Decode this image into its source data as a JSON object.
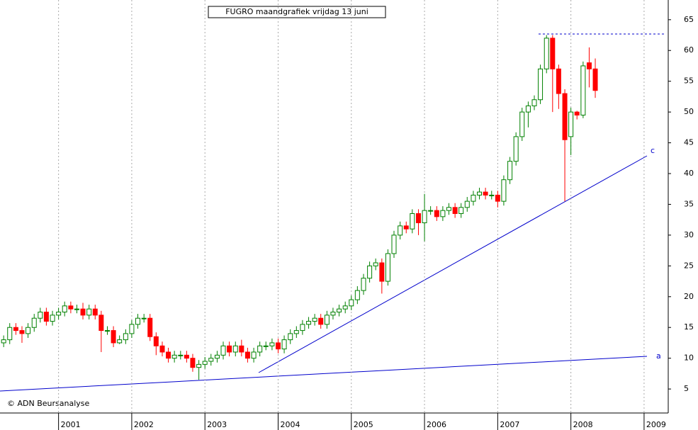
{
  "chart_data": {
    "type": "candlestick",
    "title": "FUGRO maandgrafiek vrijdag 13 juni",
    "watermark": "© ADN Beursanalyse",
    "annotations": [
      "a",
      "c"
    ],
    "up_color": "#008000",
    "down_color": "#ff0000",
    "xlim": [
      2000.2,
      2009.33
    ],
    "xticks": [
      2001,
      2002,
      2003,
      2004,
      2005,
      2006,
      2007,
      2008,
      2009
    ],
    "ylim": [
      1.1,
      68.2
    ],
    "yticks": [
      5,
      10,
      15,
      20,
      25,
      30,
      35,
      40,
      45,
      50,
      55,
      60,
      65
    ],
    "grid": true,
    "x": [
      2000.25,
      2000.333,
      2000.417,
      2000.5,
      2000.583,
      2000.667,
      2000.75,
      2000.833,
      2000.917,
      2001,
      2001.083,
      2001.167,
      2001.25,
      2001.333,
      2001.417,
      2001.5,
      2001.583,
      2001.667,
      2001.75,
      2001.833,
      2001.917,
      2002,
      2002.083,
      2002.167,
      2002.25,
      2002.333,
      2002.417,
      2002.5,
      2002.583,
      2002.667,
      2002.75,
      2002.833,
      2002.917,
      2003,
      2003.083,
      2003.167,
      2003.25,
      2003.333,
      2003.417,
      2003.5,
      2003.583,
      2003.667,
      2003.75,
      2003.833,
      2003.917,
      2004,
      2004.083,
      2004.167,
      2004.25,
      2004.333,
      2004.417,
      2004.5,
      2004.583,
      2004.667,
      2004.75,
      2004.833,
      2004.917,
      2005,
      2005.083,
      2005.167,
      2005.25,
      2005.333,
      2005.417,
      2005.5,
      2005.583,
      2005.667,
      2005.75,
      2005.833,
      2005.917,
      2006,
      2006.083,
      2006.167,
      2006.25,
      2006.333,
      2006.417,
      2006.5,
      2006.583,
      2006.667,
      2006.75,
      2006.833,
      2006.917,
      2007,
      2007.083,
      2007.167,
      2007.25,
      2007.333,
      2007.417,
      2007.5,
      2007.583,
      2007.667,
      2007.75,
      2007.833,
      2007.917,
      2008,
      2008.083,
      2008.167,
      2008.25,
      2008.333
    ],
    "open": [
      12.5,
      13,
      15,
      14.5,
      14,
      15,
      16.5,
      17.5,
      16,
      17,
      17.5,
      18.5,
      18,
      18,
      17,
      18,
      17,
      14.5,
      14.5,
      12.5,
      13,
      14,
      15.5,
      16.5,
      16.5,
      13.5,
      12,
      11,
      10,
      10.5,
      10.5,
      10,
      8.5,
      9,
      9.5,
      10,
      10.5,
      12,
      11,
      12,
      11,
      10,
      11,
      12,
      12,
      12.5,
      11.5,
      13,
      14,
      14.5,
      15.5,
      16,
      16.5,
      15.5,
      17,
      17.5,
      18,
      18.5,
      19.5,
      21,
      23,
      25,
      25.5,
      22.5,
      27,
      30,
      31.5,
      31,
      33.5,
      32,
      34,
      34,
      33,
      34,
      34.5,
      33.5,
      34.5,
      35.5,
      36.5,
      37,
      36.5,
      36.5,
      35.5,
      39,
      42,
      46,
      50,
      51,
      52,
      57,
      62,
      57,
      53,
      46,
      50,
      49.5,
      58,
      57
    ],
    "high": [
      13.7,
      15.7,
      15.7,
      15.2,
      15.7,
      17.2,
      18.2,
      18.2,
      17.7,
      18.2,
      19.2,
      19.2,
      18.7,
      19,
      18.7,
      18.7,
      17.7,
      15.2,
      15.2,
      13.7,
      14.7,
      16.2,
      17.2,
      17.2,
      17.2,
      14.2,
      12.7,
      11.7,
      11.2,
      11.2,
      11.2,
      10.7,
      9.7,
      10.2,
      10.7,
      11.2,
      12.7,
      12.7,
      12.7,
      13,
      11.7,
      11.7,
      12.7,
      12.7,
      13.2,
      13.2,
      13.7,
      14.7,
      15.2,
      16.2,
      16.7,
      17.2,
      17.2,
      17.7,
      18.2,
      18.7,
      19.2,
      20.2,
      21.7,
      23.7,
      25.7,
      26.2,
      26.2,
      27.7,
      30.7,
      32.2,
      32.2,
      34.2,
      34.2,
      36.7,
      34.7,
      34.7,
      34.7,
      35.2,
      35.2,
      35.2,
      36.2,
      37.2,
      37.7,
      37.7,
      37.2,
      37.2,
      39.7,
      42.7,
      46.7,
      50.7,
      51.7,
      52.7,
      57.7,
      62.5,
      62.5,
      57.7,
      53.7,
      50.7,
      50.2,
      58.2,
      60.5,
      58.7
    ],
    "low": [
      11.8,
      12.3,
      13.8,
      12.5,
      13.3,
      14.3,
      15.8,
      15.3,
      15.3,
      16.3,
      16.8,
      17.3,
      17.3,
      16.3,
      16.3,
      16.3,
      11,
      13.8,
      11.8,
      12.3,
      12.3,
      13.3,
      14.8,
      15.8,
      12.8,
      10.5,
      10.3,
      9.3,
      9.3,
      9.8,
      9.3,
      7.8,
      6.5,
      8.3,
      8.8,
      9.3,
      9.8,
      10.3,
      10.3,
      10.3,
      9.3,
      9.3,
      10.3,
      11.3,
      11.3,
      10.8,
      10.8,
      12.3,
      13.3,
      13.8,
      14.8,
      15.3,
      14.8,
      14.8,
      16.3,
      16.8,
      17.3,
      17.8,
      18.8,
      20.3,
      22.3,
      24.3,
      20.5,
      21.8,
      26.3,
      29.3,
      30.3,
      30.3,
      30,
      29,
      33.3,
      32.3,
      32.3,
      33.3,
      32.8,
      32.8,
      33.8,
      34.8,
      35.8,
      35.8,
      35.8,
      34.5,
      34.8,
      38.3,
      41.3,
      45.3,
      47.5,
      50.3,
      51.3,
      56.3,
      50,
      50.5,
      35.5,
      43,
      48.8,
      49,
      54,
      52.3
    ],
    "close": [
      13,
      15,
      14.5,
      14,
      15,
      16.5,
      17.5,
      16,
      17,
      17.5,
      18.5,
      18,
      18,
      17,
      18,
      17,
      14.5,
      14.5,
      12.5,
      13,
      14,
      15.5,
      16.5,
      16.5,
      13.5,
      12,
      11,
      10,
      10.5,
      10.5,
      10,
      8.5,
      9,
      9.5,
      10,
      10.5,
      12,
      11,
      12,
      11,
      10,
      11,
      12,
      12,
      12.5,
      11.5,
      13,
      14,
      14.5,
      15.5,
      16,
      16.5,
      15.5,
      17,
      17.5,
      18,
      18.5,
      19.5,
      21,
      23,
      25,
      25.5,
      22.5,
      27,
      30,
      31.5,
      31,
      33.5,
      32,
      34,
      34,
      33,
      34,
      34.5,
      33.5,
      34.5,
      35.5,
      36.5,
      37,
      36.5,
      36.5,
      35.5,
      39,
      42,
      46,
      50,
      51,
      52,
      57,
      62,
      57,
      53,
      45.5,
      50,
      49.5,
      57.5,
      57,
      53.5
    ]
  }
}
